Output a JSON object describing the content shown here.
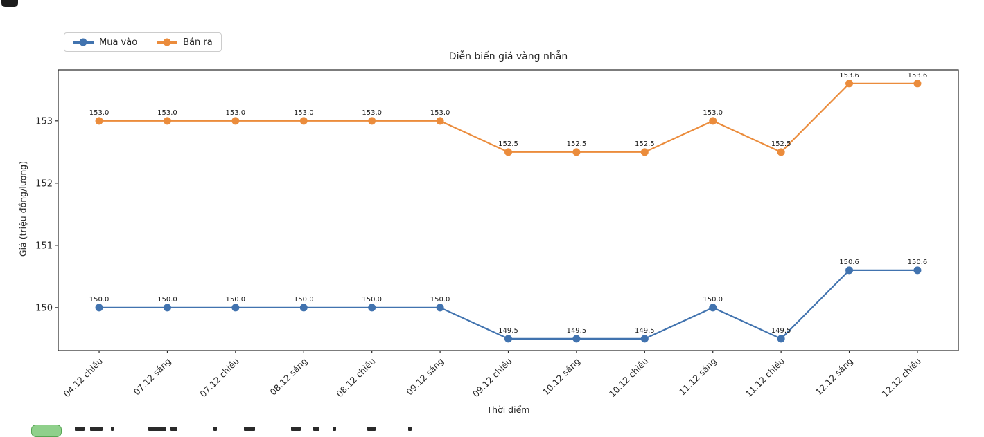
{
  "figure": {
    "title": "Diễn biến giá vàng nhẫn",
    "xlabel": "Thời điểm",
    "ylabel": "Giá (triệu đồng/lượng)"
  },
  "legend": {
    "position": "upper-left-above-axes",
    "items": [
      {
        "label": "Mua vào",
        "color": "#4173af",
        "marker": "circle"
      },
      {
        "label": "Bán ra",
        "color": "#eb8c3c",
        "marker": "circle"
      }
    ]
  },
  "chart_data": {
    "type": "line",
    "title": "Diễn biến giá vàng nhẫn",
    "xlabel": "Thời điểm",
    "ylabel": "Giá (triệu đồng/lượng)",
    "categories": [
      "04.12 chiều",
      "07.12 sáng",
      "07.12 chiều",
      "08.12 sáng",
      "08.12 chiều",
      "09.12 sáng",
      "09.12 chiều",
      "10.12 sáng",
      "10.12 chiều",
      "11.12 sáng",
      "11.12 chiều",
      "12.12 sáng",
      "12.12 chiều"
    ],
    "series": [
      {
        "name": "Mua vào",
        "color": "#4173af",
        "values": [
          150.0,
          150.0,
          150.0,
          150.0,
          150.0,
          150.0,
          149.5,
          149.5,
          149.5,
          150.0,
          149.5,
          150.6,
          150.6
        ]
      },
      {
        "name": "Bán ra",
        "color": "#eb8c3c",
        "values": [
          153.0,
          153.0,
          153.0,
          153.0,
          153.0,
          153.0,
          152.5,
          152.5,
          152.5,
          153.0,
          152.5,
          153.6,
          153.6
        ]
      }
    ],
    "yticks": [
      150,
      151,
      152,
      153
    ],
    "ylim": [
      149.31,
      153.82
    ],
    "grid": false,
    "point_labels": true,
    "point_label_decimals": 1,
    "x_tick_rotation_deg": 45,
    "frame_color": "#262626",
    "text_color": "#262626"
  },
  "decorations": {
    "bottom_partial_icon": "green-rounded-button-icon"
  }
}
